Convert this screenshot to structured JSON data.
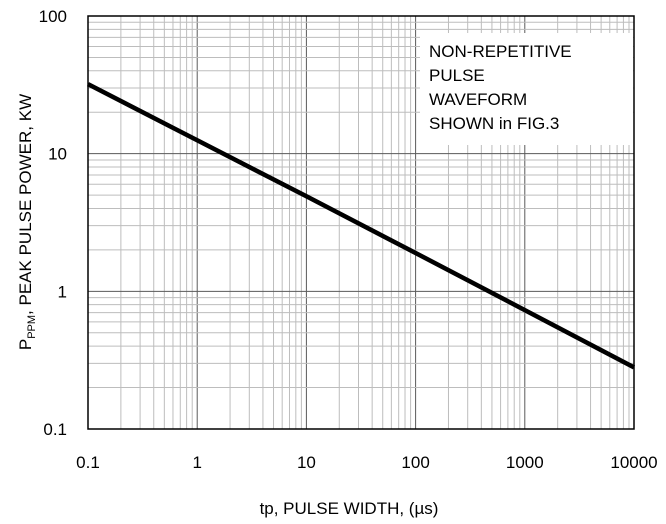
{
  "chart_data": {
    "type": "line",
    "x_scale": "log",
    "y_scale": "log",
    "xlim": [
      0.1,
      10000
    ],
    "ylim": [
      0.1,
      100
    ],
    "grid": true,
    "x_ticks": [
      "0.1",
      "1",
      "10",
      "100",
      "1000",
      "10000"
    ],
    "y_ticks": [
      "0.1",
      "1",
      "10",
      "100"
    ],
    "xlabel": "tp, PULSE WIDTH, (µs)",
    "ylabel": {
      "prefix": "P",
      "subscript": "PPM",
      "suffix": ",  PEAK PULSE POWER, KW"
    },
    "annotation": [
      "NON-REPETITIVE",
      "PULSE",
      "WAVEFORM",
      "SHOWN in FIG.3"
    ],
    "series": [
      {
        "x": [
          0.1,
          1,
          10,
          100,
          1000,
          10000
        ],
        "y": [
          32,
          12.5,
          4.9,
          1.9,
          0.73,
          0.28
        ]
      }
    ]
  }
}
